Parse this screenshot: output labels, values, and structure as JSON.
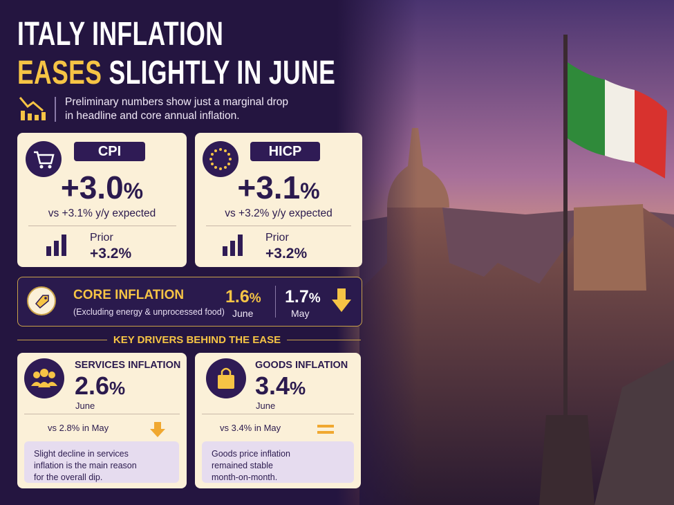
{
  "header": {
    "title_line1": "ITALY INFLATION",
    "title_highlight": "EASES",
    "title_rest": "SLIGHTLY IN JUNE",
    "subtitle_lines": [
      "Preliminary numbers show just a marginal drop",
      "in headline and core annual inflation."
    ]
  },
  "headline": [
    {
      "label": "CPI",
      "value": "+3.0",
      "unit": "%",
      "expected": "vs +3.1% y/y expected",
      "prior_label": "Prior",
      "prior_value": "+3.2%"
    },
    {
      "label": "HICP",
      "value": "+3.1",
      "unit": "%",
      "expected": "vs +3.2% y/y expected",
      "prior_label": "Prior",
      "prior_value": "+3.2%"
    }
  ],
  "core": {
    "title": "CORE INFLATION",
    "note": "(Excluding energy & unprocessed food)",
    "current": {
      "value": "1.6",
      "unit": "%",
      "period": "June"
    },
    "previous": {
      "value": "1.7",
      "unit": "%",
      "period": "May"
    }
  },
  "drivers": {
    "title": "KEY DRIVERS BEHIND THE EASE",
    "items": [
      {
        "title": "SERVICES INFLATION",
        "value": "2.6",
        "unit": "%",
        "period": "June",
        "comparison": "vs 2.8% in May",
        "note_lines": [
          "Slight decline in services",
          "inflation is the main reason",
          "for the overall dip."
        ]
      },
      {
        "title": "GOODS INFLATION",
        "value": "3.4",
        "unit": "%",
        "period": "June",
        "comparison": "vs 3.4% in May",
        "note_lines": [
          "Goods price inflation",
          "remained stable",
          "month-on-month."
        ]
      }
    ]
  }
}
